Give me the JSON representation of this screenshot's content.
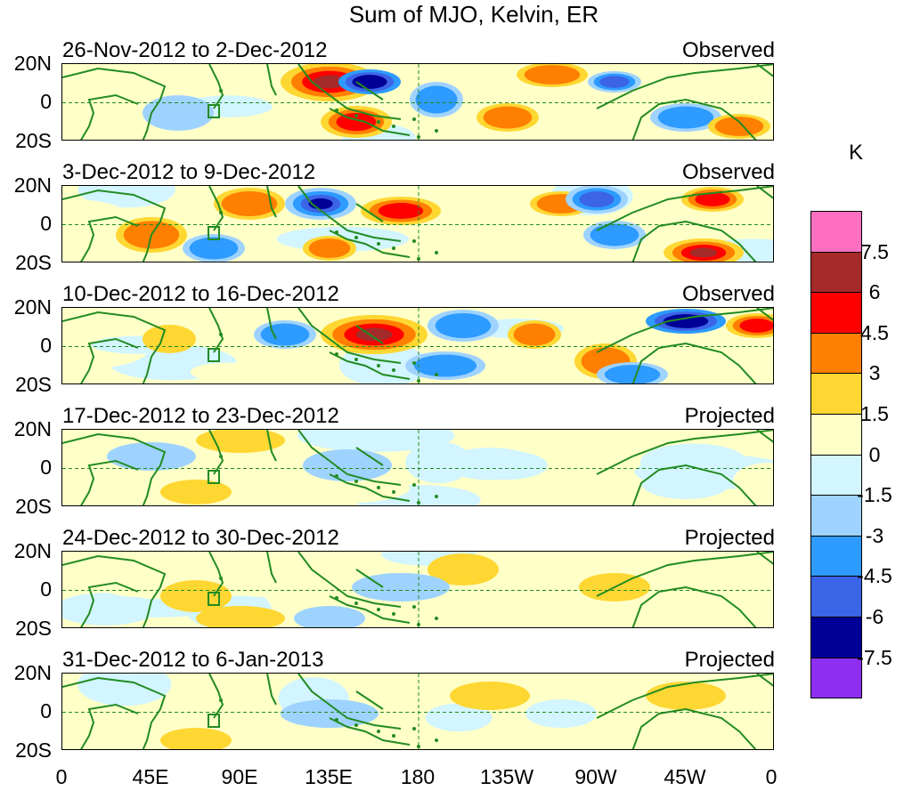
{
  "title": "Sum of MJO, Kelvin, ER",
  "panels": [
    {
      "date": "26-Nov-2012 to 2-Dec-2012",
      "status": "Observed"
    },
    {
      "date": "3-Dec-2012 to 9-Dec-2012",
      "status": "Observed"
    },
    {
      "date": "10-Dec-2012 to 16-Dec-2012",
      "status": "Observed"
    },
    {
      "date": "17-Dec-2012 to 23-Dec-2012",
      "status": "Projected"
    },
    {
      "date": "24-Dec-2012 to 30-Dec-2012",
      "status": "Projected"
    },
    {
      "date": "31-Dec-2012 to 6-Jan-2013",
      "status": "Projected"
    }
  ],
  "lat_labels": [
    "20N",
    "0",
    "20S"
  ],
  "lon_labels": [
    "0",
    "45E",
    "90E",
    "135E",
    "180",
    "135W",
    "90W",
    "45W",
    "0"
  ],
  "colorbar": {
    "unit": "K",
    "levels": [
      "7.5",
      "6",
      "4.5",
      "3",
      "1.5",
      "0",
      "-1.5",
      "-3",
      "-4.5",
      "-6",
      "-7.5"
    ],
    "colors": [
      "#ff6fbf",
      "#a52a2a",
      "#ff0000",
      "#ff7f00",
      "#ffd732",
      "#ffffc8",
      "#d2f5ff",
      "#9fd3ff",
      "#2d9bff",
      "#3c64e6",
      "#000096",
      "#8c2ff0"
    ]
  },
  "land_color": "#228b22",
  "equator_color": "#228b22"
}
